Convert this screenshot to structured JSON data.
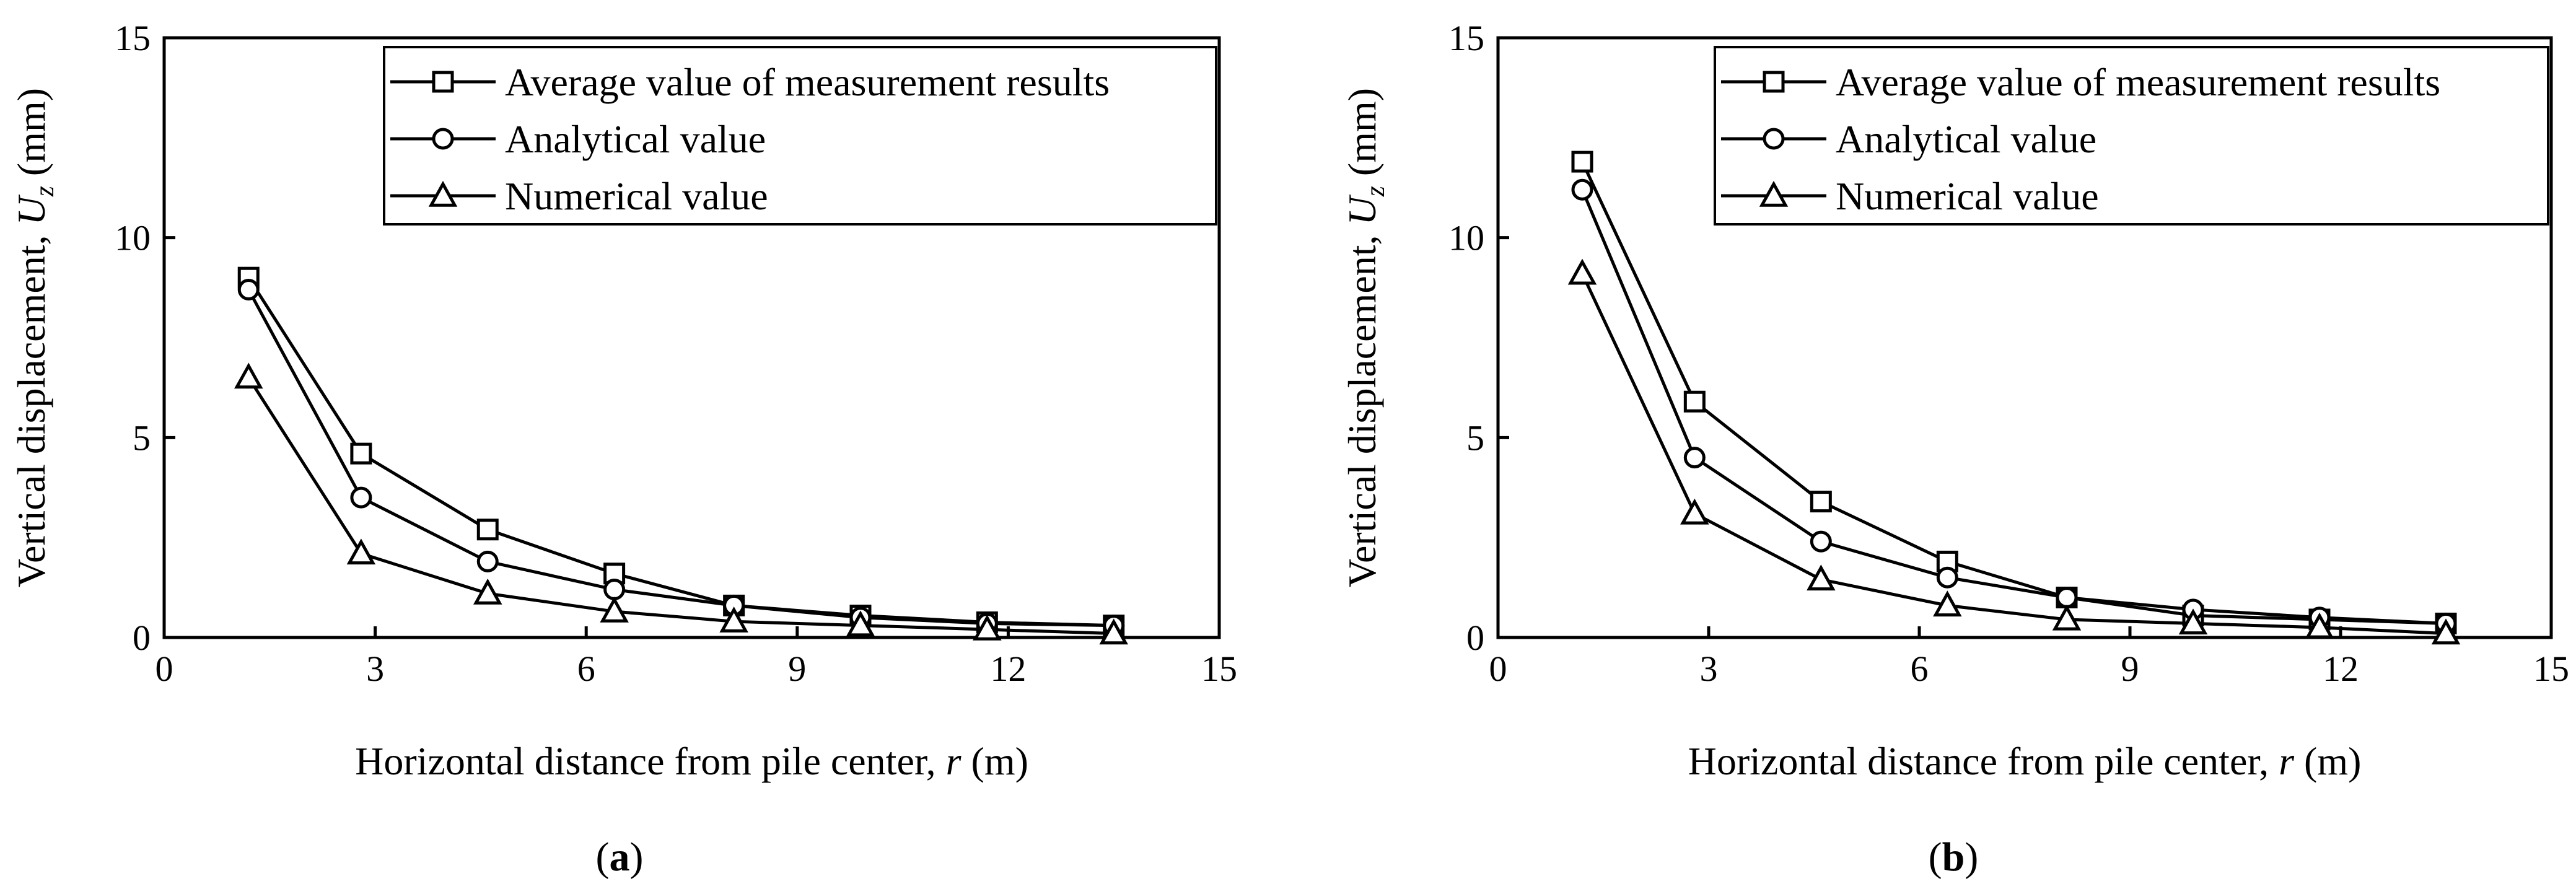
{
  "chart_data": [
    {
      "type": "line",
      "panel_label": "(a)",
      "xlabel": "Horizontal distance from pile center, r (m)",
      "xlabel_main": "Horizontal distance from pile center, ",
      "xlabel_var": "r",
      "xlabel_unit": " (m)",
      "ylabel": "Vertical displacement, Uz (mm)",
      "ylabel_main": "Vertical displacement, ",
      "ylabel_var": "U",
      "ylabel_sub": "z",
      "ylabel_unit": " (mm)",
      "xlim": [
        0,
        15
      ],
      "ylim": [
        0,
        15
      ],
      "xticks": [
        0,
        3,
        6,
        9,
        12,
        15
      ],
      "yticks": [
        0,
        5,
        10,
        15
      ],
      "grid": false,
      "legend_position": "top-right",
      "x": [
        1.2,
        2.8,
        4.6,
        6.4,
        8.1,
        9.9,
        11.7,
        13.5
      ],
      "series": [
        {
          "name": "Average value of measurement results",
          "marker": "square",
          "values": [
            9.0,
            4.6,
            2.7,
            1.6,
            0.8,
            0.55,
            0.38,
            0.3
          ]
        },
        {
          "name": "Analytical value",
          "marker": "circle",
          "values": [
            8.7,
            3.5,
            1.9,
            1.2,
            0.8,
            0.5,
            0.35,
            0.3
          ]
        },
        {
          "name": "Numerical value",
          "marker": "triangle",
          "values": [
            6.5,
            2.1,
            1.1,
            0.65,
            0.4,
            0.3,
            0.2,
            0.1
          ]
        }
      ]
    },
    {
      "type": "line",
      "panel_label": "(b)",
      "xlabel": "Horizontal distance from pile center, r (m)",
      "xlabel_main": "Horizontal distance from pile center, ",
      "xlabel_var": "r",
      "xlabel_unit": " (m)",
      "ylabel": "Vertical displacement, Uz (mm)",
      "ylabel_main": "Vertical displacement, ",
      "ylabel_var": "U",
      "ylabel_sub": "z",
      "ylabel_unit": " (mm)",
      "xlim": [
        0,
        15
      ],
      "ylim": [
        0,
        15
      ],
      "xticks": [
        0,
        3,
        6,
        9,
        12,
        15
      ],
      "yticks": [
        0,
        5,
        10,
        15
      ],
      "grid": false,
      "legend_position": "top-right",
      "x": [
        1.2,
        2.8,
        4.6,
        6.4,
        8.1,
        9.9,
        11.7,
        13.5
      ],
      "series": [
        {
          "name": "Average value of measurement results",
          "marker": "square",
          "values": [
            11.9,
            5.9,
            3.4,
            1.9,
            1.0,
            0.55,
            0.45,
            0.35
          ]
        },
        {
          "name": "Analytical value",
          "marker": "circle",
          "values": [
            11.2,
            4.5,
            2.4,
            1.5,
            1.0,
            0.7,
            0.5,
            0.35
          ]
        },
        {
          "name": "Numerical value",
          "marker": "triangle",
          "values": [
            9.1,
            3.1,
            1.45,
            0.8,
            0.45,
            0.35,
            0.25,
            0.1
          ]
        }
      ]
    }
  ]
}
